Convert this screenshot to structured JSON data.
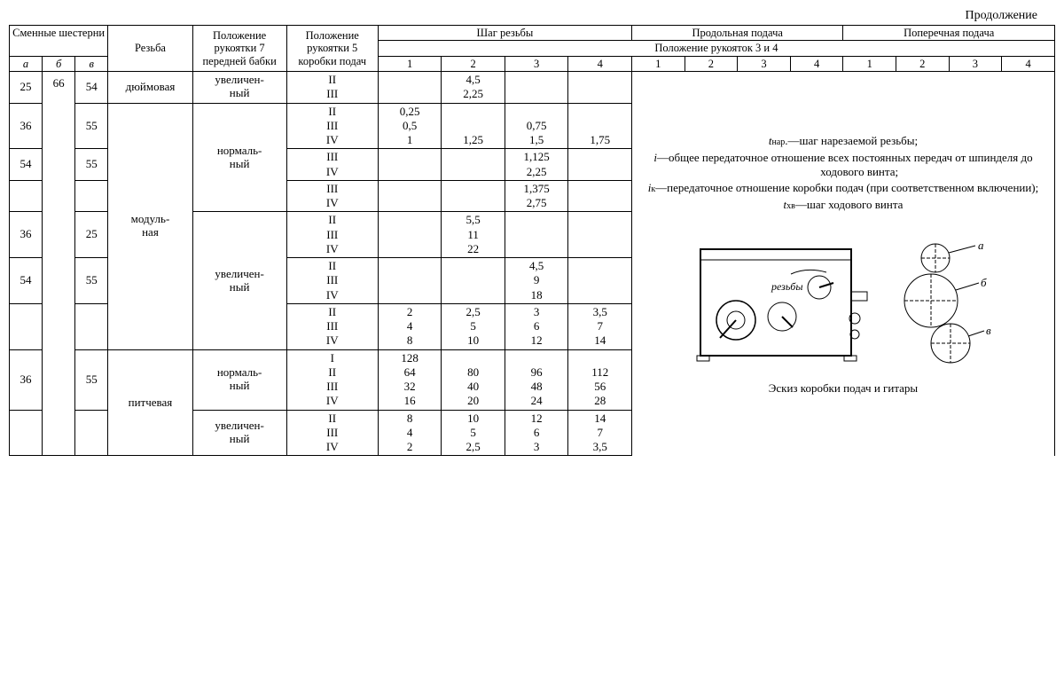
{
  "continuation": "Продолжение",
  "headers": {
    "gears": "Сменные шестерни",
    "a": "а",
    "b": "б",
    "v": "в",
    "thread": "Резьба",
    "pos7": "Положение рукоятки 7 передней бабки",
    "pos5": "Положение рукоятки 5 коробки подач",
    "pitch": "Шаг резьбы",
    "longfeed": "Продольная подача",
    "crossfeed": "Поперечная подача",
    "handles34": "Положение рукояток 3 и 4",
    "n1": "1",
    "n2": "2",
    "n3": "3",
    "n4": "4"
  },
  "gearbox_svg_stroke": "#000",
  "rows": [
    {
      "a": "25",
      "b": "66",
      "v": "54",
      "thread": "дюймовая",
      "mode": "увеличенный",
      "pos5": [
        "II",
        "III"
      ],
      "c1": [
        "",
        ""
      ],
      "c2": [
        "4,5",
        "2,25"
      ],
      "c3": [
        "",
        ""
      ],
      "c4": [
        "",
        ""
      ]
    },
    {
      "a": "36",
      "b": "",
      "v": "55",
      "thread": "модульная",
      "mode": "нормальный",
      "pos5": [
        "II",
        "III",
        "IV"
      ],
      "c1": [
        "0,25",
        "0,5",
        "1"
      ],
      "c2": [
        "",
        "",
        "1,25"
      ],
      "c3": [
        "",
        "0,75",
        "1,5"
      ],
      "c4": [
        "",
        "",
        "1,75"
      ]
    },
    {
      "a": "54",
      "b": "",
      "v": "55",
      "thread": "",
      "mode": "",
      "pos5": [
        "III",
        "IV"
      ],
      "c1": [
        "",
        ""
      ],
      "c2": [
        "",
        ""
      ],
      "c3": [
        "1,125",
        "2,25"
      ],
      "c4": [
        "",
        ""
      ]
    },
    {
      "a": "",
      "b": "",
      "v": "",
      "thread": "",
      "mode": "",
      "pos5": [
        "III",
        "IV"
      ],
      "c1": [
        "",
        ""
      ],
      "c2": [
        "",
        ""
      ],
      "c3": [
        "1,375",
        "2,75"
      ],
      "c4": [
        "",
        ""
      ]
    },
    {
      "a": "36",
      "b": "",
      "v": "25",
      "thread": "",
      "mode": "увеличенный",
      "pos5": [
        "II",
        "III",
        "IV"
      ],
      "c1": [
        "",
        "",
        ""
      ],
      "c2": [
        "5,5",
        "11",
        "22"
      ],
      "c3": [
        "",
        "",
        ""
      ],
      "c4": [
        "",
        "",
        ""
      ]
    },
    {
      "a": "54",
      "b": "",
      "v": "55",
      "thread": "",
      "mode": "",
      "pos5": [
        "II",
        "III",
        "IV"
      ],
      "c1": [
        "",
        "",
        ""
      ],
      "c2": [
        "",
        "",
        ""
      ],
      "c3": [
        "4,5",
        "9",
        "18"
      ],
      "c4": [
        "",
        "",
        ""
      ]
    },
    {
      "a": "",
      "b": "",
      "v": "",
      "thread": "",
      "mode": "",
      "pos5": [
        "II",
        "III",
        "IV"
      ],
      "c1": [
        "2",
        "4",
        "8"
      ],
      "c2": [
        "2,5",
        "5",
        "10"
      ],
      "c3": [
        "3",
        "6",
        "12"
      ],
      "c4": [
        "3,5",
        "7",
        "14"
      ]
    },
    {
      "a": "36",
      "b": "",
      "v": "55",
      "thread": "питчевая",
      "mode": "нормальный",
      "pos5": [
        "I",
        "II",
        "III",
        "IV"
      ],
      "c1": [
        "128",
        "64",
        "32",
        "16"
      ],
      "c2": [
        "",
        "80",
        "40",
        "20"
      ],
      "c3": [
        "",
        "96",
        "48",
        "24"
      ],
      "c4": [
        "",
        "112",
        "56",
        "28"
      ]
    },
    {
      "a": "",
      "b": "",
      "v": "",
      "thread": "",
      "mode": "увеличенный",
      "pos5": [
        "II",
        "III",
        "IV"
      ],
      "c1": [
        "8",
        "4",
        "2"
      ],
      "c2": [
        "10",
        "5",
        "2,5"
      ],
      "c3": [
        "12",
        "6",
        "3"
      ],
      "c4": [
        "14",
        "7",
        "3,5"
      ]
    }
  ],
  "defs": {
    "tnar": "tнар.—шаг нарезаемой резьбы;",
    "i": "i—общее передаточное отношение всех постоянных передач от шпинделя до ходового винта;",
    "ik": "iк—передаточное отношение коробки подач (при соответственном включении);",
    "txv": "tхв—шаг ходового винта"
  },
  "caption": "Эскиз коробки подач и гитары",
  "gear_labels": {
    "a": "а",
    "b": "б",
    "v": "в"
  },
  "dial_label": "резьбы"
}
